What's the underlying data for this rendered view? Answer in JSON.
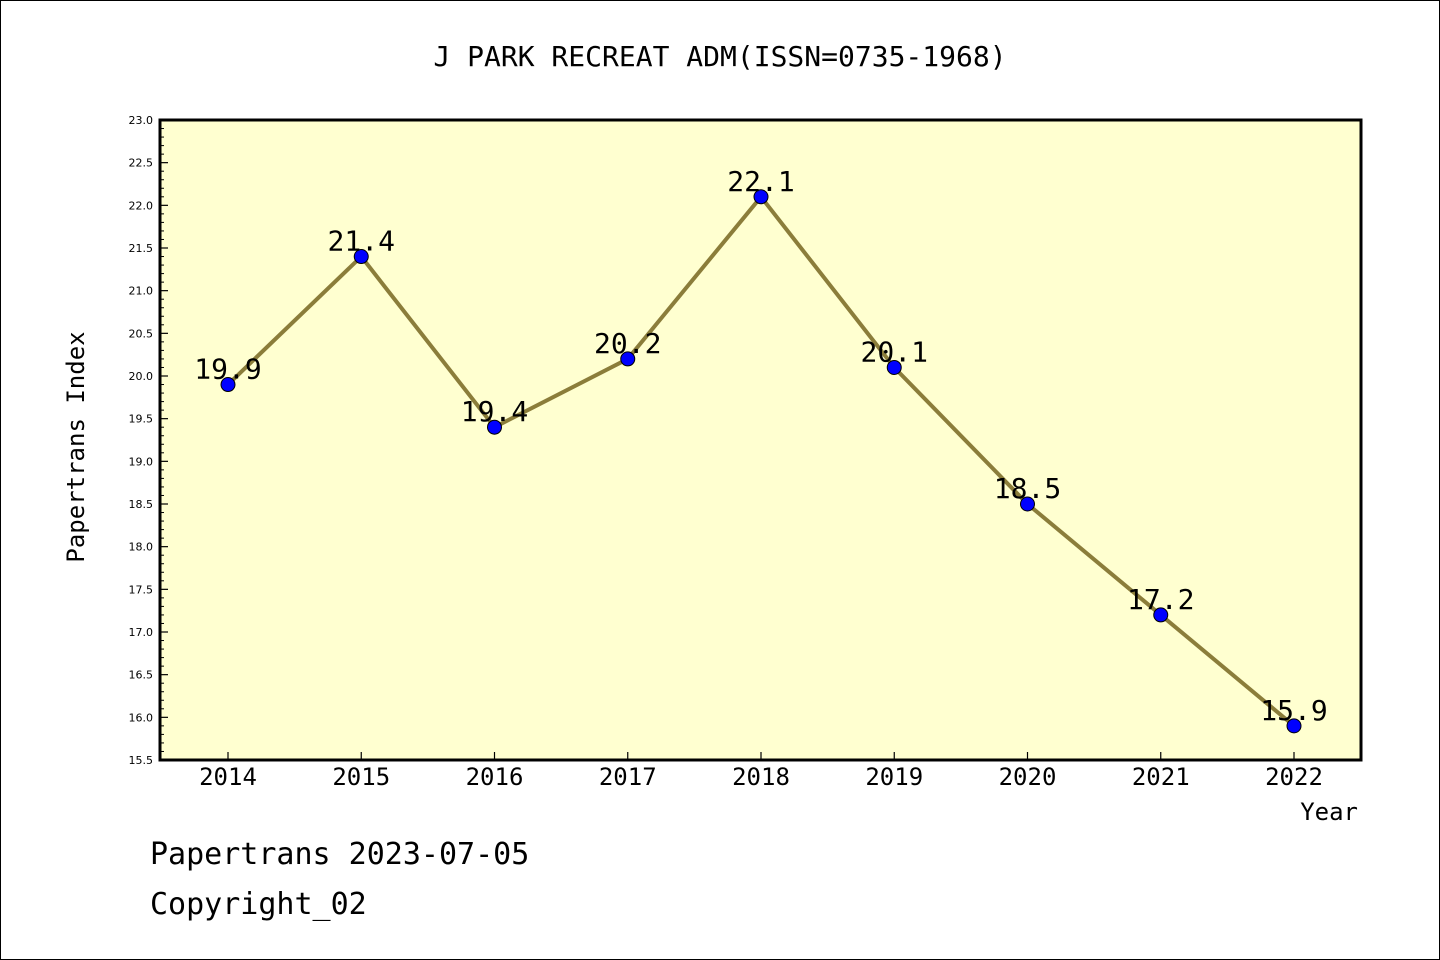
{
  "chart_data": {
    "type": "line",
    "title": "J PARK RECREAT ADM(ISSN=0735-1968)",
    "xlabel": "Year",
    "ylabel": "Papertrans Index",
    "x": [
      "2014",
      "2015",
      "2016",
      "2017",
      "2018",
      "2019",
      "2020",
      "2021",
      "2022"
    ],
    "series": [
      {
        "values": [
          19.9,
          21.4,
          19.4,
          20.2,
          22.1,
          20.1,
          18.5,
          17.2,
          15.9
        ],
        "labels": [
          "19.9",
          "21.4",
          "19.4",
          "20.2",
          "22.1",
          "20.1",
          "18.5",
          "17.2",
          "15.9"
        ],
        "line_color": "#8b7d3a",
        "marker_color": "#0000ff"
      }
    ],
    "ylim": [
      15.5,
      23.0
    ],
    "yticks": [
      "15.5",
      "16.0",
      "16.5",
      "17.0",
      "17.5",
      "18.0",
      "18.5",
      "19.0",
      "19.5",
      "20.0",
      "20.5",
      "21.0",
      "21.5",
      "22.0",
      "22.5",
      "23.0"
    ],
    "plot_background": "#ffffd0",
    "grid": false,
    "legend": "none"
  },
  "footer": {
    "line1": "Papertrans 2023-07-05",
    "line2": "Copyright_02"
  }
}
